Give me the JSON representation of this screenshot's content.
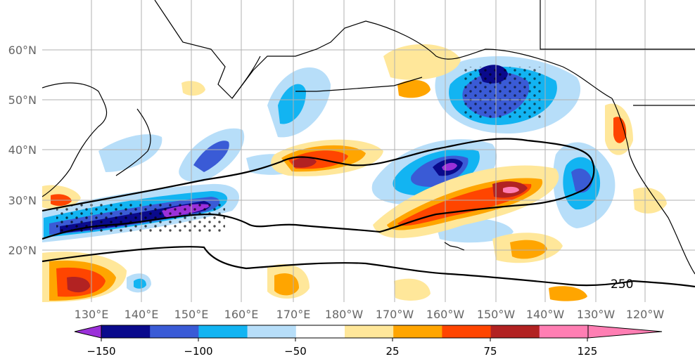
{
  "map": {
    "lat_ticks": [
      "60°N",
      "50°N",
      "40°N",
      "30°N",
      "20°N"
    ],
    "lon_ticks": [
      "130°E",
      "140°E",
      "150°E",
      "160°E",
      "170°E",
      "180°W",
      "170°W",
      "160°W",
      "150°W",
      "140°W",
      "130°W",
      "120°W"
    ],
    "contour_label": "250",
    "colors": {
      "c_m150": "#9b30d9",
      "c_m125": "#0a0a8c",
      "c_m100": "#3a5bd6",
      "c_m75": "#12b4f2",
      "c_m50": "#b7def9",
      "c_p25": "#ffe79a",
      "c_p50": "#ffa500",
      "c_p75": "#ff4500",
      "c_p100": "#b22222",
      "c_p125": "#ff7eb3",
      "land_line": "#000000",
      "grid": "#b0b0b0"
    }
  },
  "colorbar": {
    "tick_labels": [
      "−150",
      "−100",
      "−50",
      "25",
      "75",
      "125"
    ]
  }
}
